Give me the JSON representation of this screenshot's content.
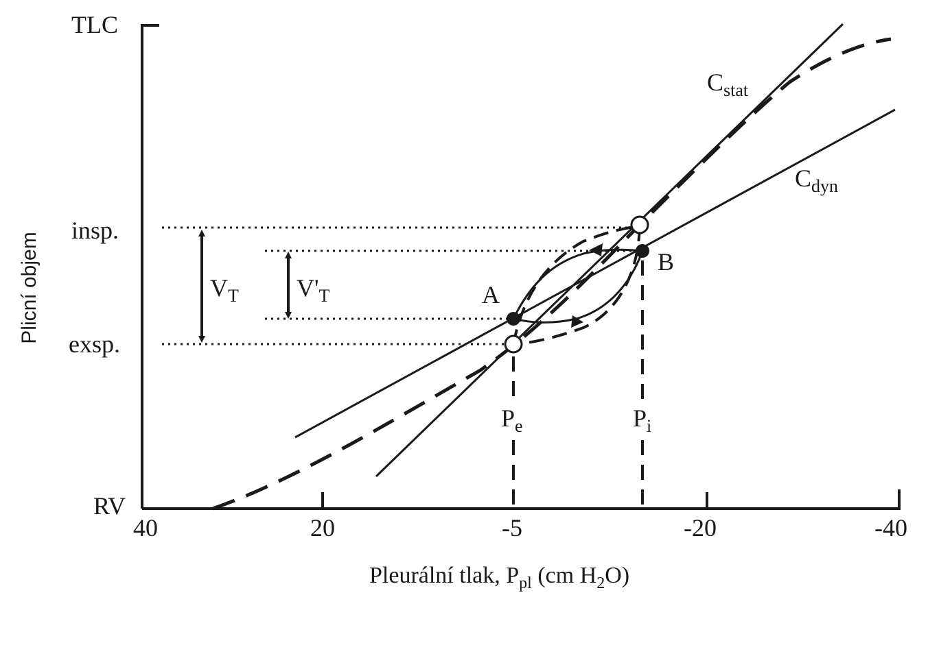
{
  "y_axis": {
    "title": "Plicní objem",
    "top_label": "TLC",
    "bottom_label": "RV",
    "insp_label": "insp.",
    "exp_label": "exsp."
  },
  "x_axis": {
    "title_main": "Pleurální tlak, P",
    "title_sub": "pl",
    "title_unit_start": " (cm H",
    "title_unit_sub": "2",
    "title_unit_end": "O)",
    "ticks": [
      "40",
      "20",
      "-5",
      "-20",
      "-40"
    ]
  },
  "labels": {
    "c_stat_main": "C",
    "c_stat_sub": "stat",
    "c_dyn_main": "C",
    "c_dyn_sub": "dyn",
    "point_a": "A",
    "point_b": "B",
    "vt_main": "V",
    "vt_sub": "T",
    "vt_prime_main": "V'",
    "vt_prime_sub": "T",
    "pe_main": "P",
    "pe_sub": "e",
    "pi_main": "P",
    "pi_sub": "i"
  }
}
